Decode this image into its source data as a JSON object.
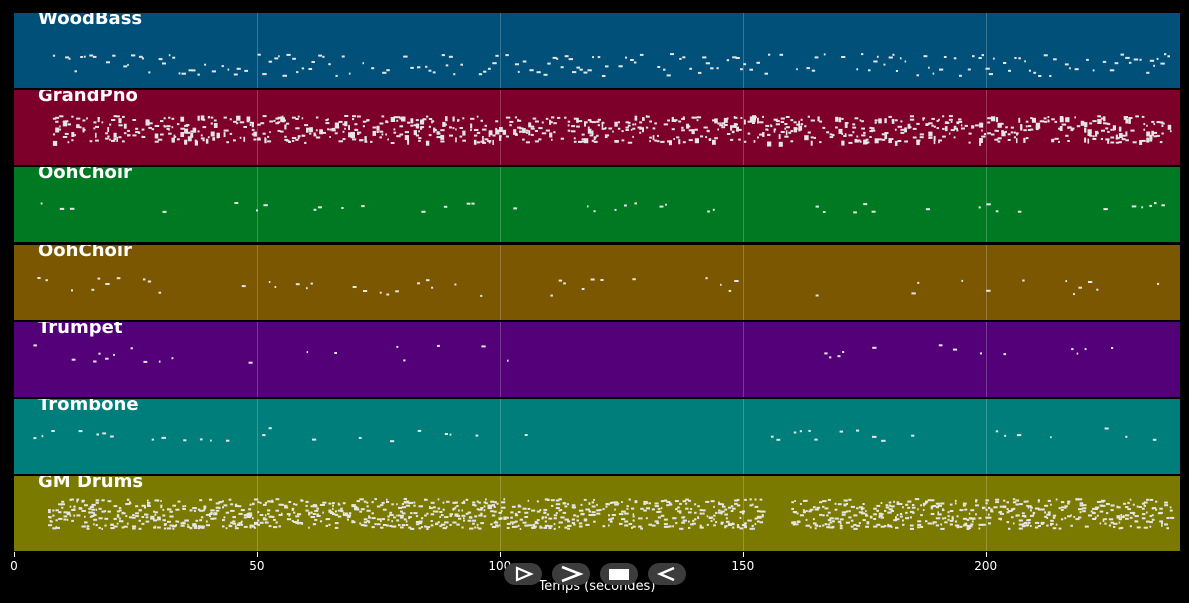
{
  "timeline": {
    "x_min": 0,
    "x_max": 240,
    "axis_title": "Temps (secondes)",
    "ticks": [
      {
        "value": 0,
        "label": "0"
      },
      {
        "value": 50,
        "label": "50"
      },
      {
        "value": 100,
        "label": "100"
      },
      {
        "value": 150,
        "label": "150"
      },
      {
        "value": 200,
        "label": "200"
      }
    ]
  },
  "tracks": [
    {
      "name": "WoodBass",
      "color": "#005079"
    },
    {
      "name": "GrandPno",
      "color": "#7d002a"
    },
    {
      "name": "OohChoir",
      "color": "#007a22"
    },
    {
      "name": "OohChoir",
      "color": "#7a5700"
    },
    {
      "name": "Trumpet",
      "color": "#530079"
    },
    {
      "name": "Trombone",
      "color": "#007e7b"
    },
    {
      "name": "GM Drums",
      "color": "#7b7a00"
    }
  ],
  "transport": [
    {
      "name": "play-button",
      "icon": "play-outline-icon"
    },
    {
      "name": "forward-button",
      "icon": "chevron-right-icon"
    },
    {
      "name": "stop-button",
      "icon": "stop-icon"
    },
    {
      "name": "rewind-button",
      "icon": "play-left-icon"
    }
  ]
}
